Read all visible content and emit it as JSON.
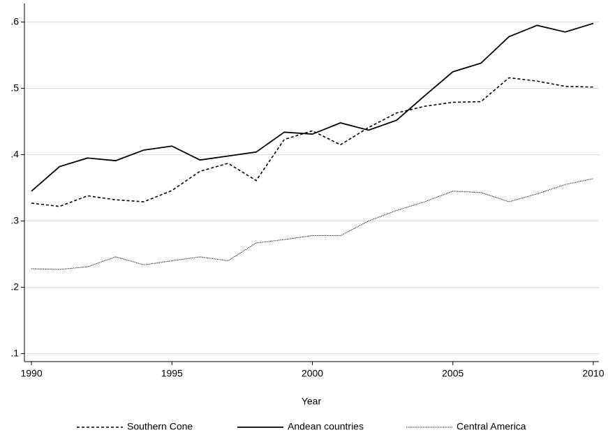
{
  "chart_data": {
    "type": "line",
    "x_label": "Year",
    "x": [
      1990,
      1991,
      1992,
      1993,
      1994,
      1995,
      1996,
      1997,
      1998,
      1999,
      2000,
      2001,
      2002,
      2003,
      2004,
      2005,
      2006,
      2007,
      2008,
      2009,
      2010
    ],
    "series": [
      {
        "name": "Southern Cone",
        "color": "#000000",
        "dash": "dashed",
        "values": [
          0.327,
          0.322,
          0.338,
          0.332,
          0.329,
          0.346,
          0.375,
          0.387,
          0.361,
          0.423,
          0.436,
          0.415,
          0.441,
          0.463,
          0.473,
          0.479,
          0.48,
          0.516,
          0.511,
          0.503,
          0.502
        ]
      },
      {
        "name": "Andean countries",
        "color": "#000000",
        "dash": "solid",
        "values": [
          0.345,
          0.382,
          0.395,
          0.391,
          0.407,
          0.413,
          0.392,
          0.398,
          0.404,
          0.434,
          0.431,
          0.448,
          0.437,
          0.452,
          0.489,
          0.525,
          0.538,
          0.578,
          0.595,
          0.585,
          0.598
        ]
      },
      {
        "name": "Central America",
        "color": "#000000",
        "dash": "dotted",
        "values": [
          0.228,
          0.227,
          0.231,
          0.246,
          0.234,
          0.24,
          0.246,
          0.24,
          0.267,
          0.272,
          0.278,
          0.278,
          0.3,
          0.316,
          0.329,
          0.345,
          0.343,
          0.329,
          0.341,
          0.355,
          0.364
        ]
      }
    ],
    "xlim": [
      1989.75,
      2010.2
    ],
    "xticks": [
      1990,
      1995,
      2000,
      2005,
      2010
    ],
    "ylim": [
      0.088,
      0.628
    ],
    "yticks": [
      {
        "value": 0.1,
        "label": ".1"
      },
      {
        "value": 0.2,
        "label": ".2"
      },
      {
        "value": 0.3,
        "label": ".3"
      },
      {
        "value": 0.4,
        "label": ".4"
      },
      {
        "value": 0.5,
        "label": ".5"
      },
      {
        "value": 0.6,
        "label": ".6"
      }
    ],
    "grid": true,
    "legend": "bottom"
  }
}
